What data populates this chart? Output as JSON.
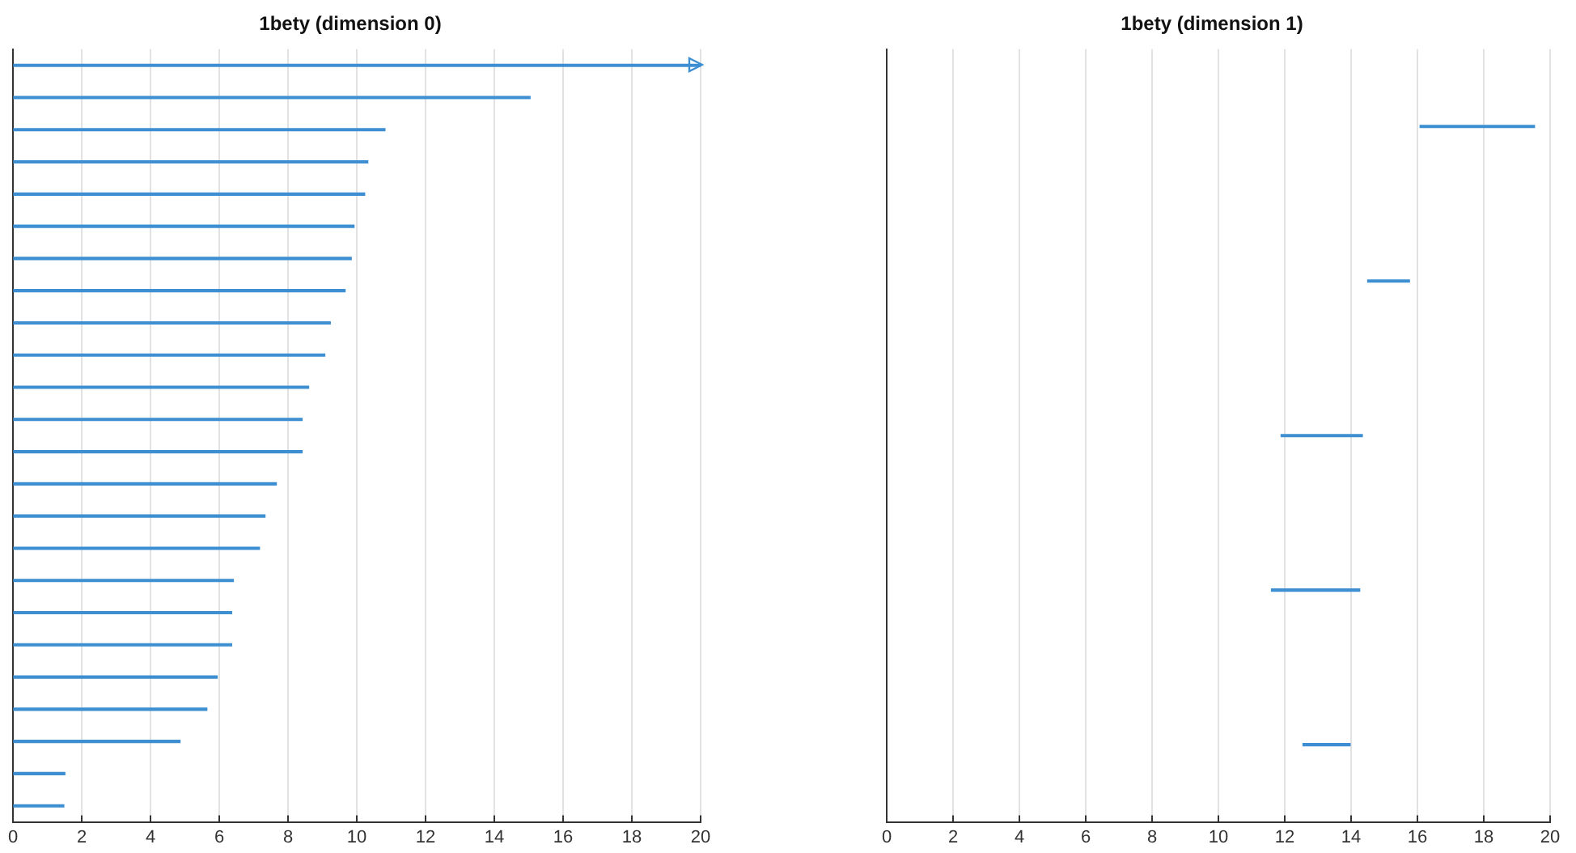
{
  "chart_data": [
    {
      "type": "bar",
      "title": "1bety (dimension 0)",
      "orientation": "horizontal",
      "categories": [
        null,
        null,
        null,
        null,
        null,
        null,
        null,
        null,
        null,
        null,
        null,
        null,
        null,
        null,
        null,
        null,
        null,
        null,
        null,
        null,
        null,
        null,
        null,
        null
      ],
      "series": [
        {
          "color": "#3d8fd1",
          "values": [
            20,
            15.04,
            10.82,
            10.32,
            10.23,
            9.92,
            9.84,
            9.66,
            9.23,
            9.07,
            8.6,
            8.41,
            8.41,
            7.66,
            7.33,
            7.17,
            6.41,
            6.36,
            6.36,
            5.94,
            5.64,
            4.86,
            1.51,
            1.48
          ]
        }
      ],
      "xlim": [
        0,
        20
      ],
      "xticks": [
        0,
        2,
        4,
        6,
        8,
        10,
        12,
        14,
        16,
        18,
        20
      ],
      "grid": "x",
      "tick_labels": "x"
    },
    {
      "type": "bar",
      "title": "1bety (dimension 1)",
      "orientation": "horizontal",
      "categories": [
        null,
        null,
        null,
        null,
        null
      ],
      "series": [
        {
          "color": "#3d8fd1",
          "base": [
            16.08,
            14.5,
            11.89,
            11.6,
            12.55
          ],
          "values": [
            3.45,
            1.26,
            2.45,
            2.66,
            1.42
          ]
        }
      ],
      "xlim": [
        0,
        20
      ],
      "xticks": [
        0,
        2,
        4,
        6,
        8,
        10,
        12,
        14,
        16,
        18,
        20
      ],
      "grid": "x",
      "tick_labels": "x"
    }
  ]
}
